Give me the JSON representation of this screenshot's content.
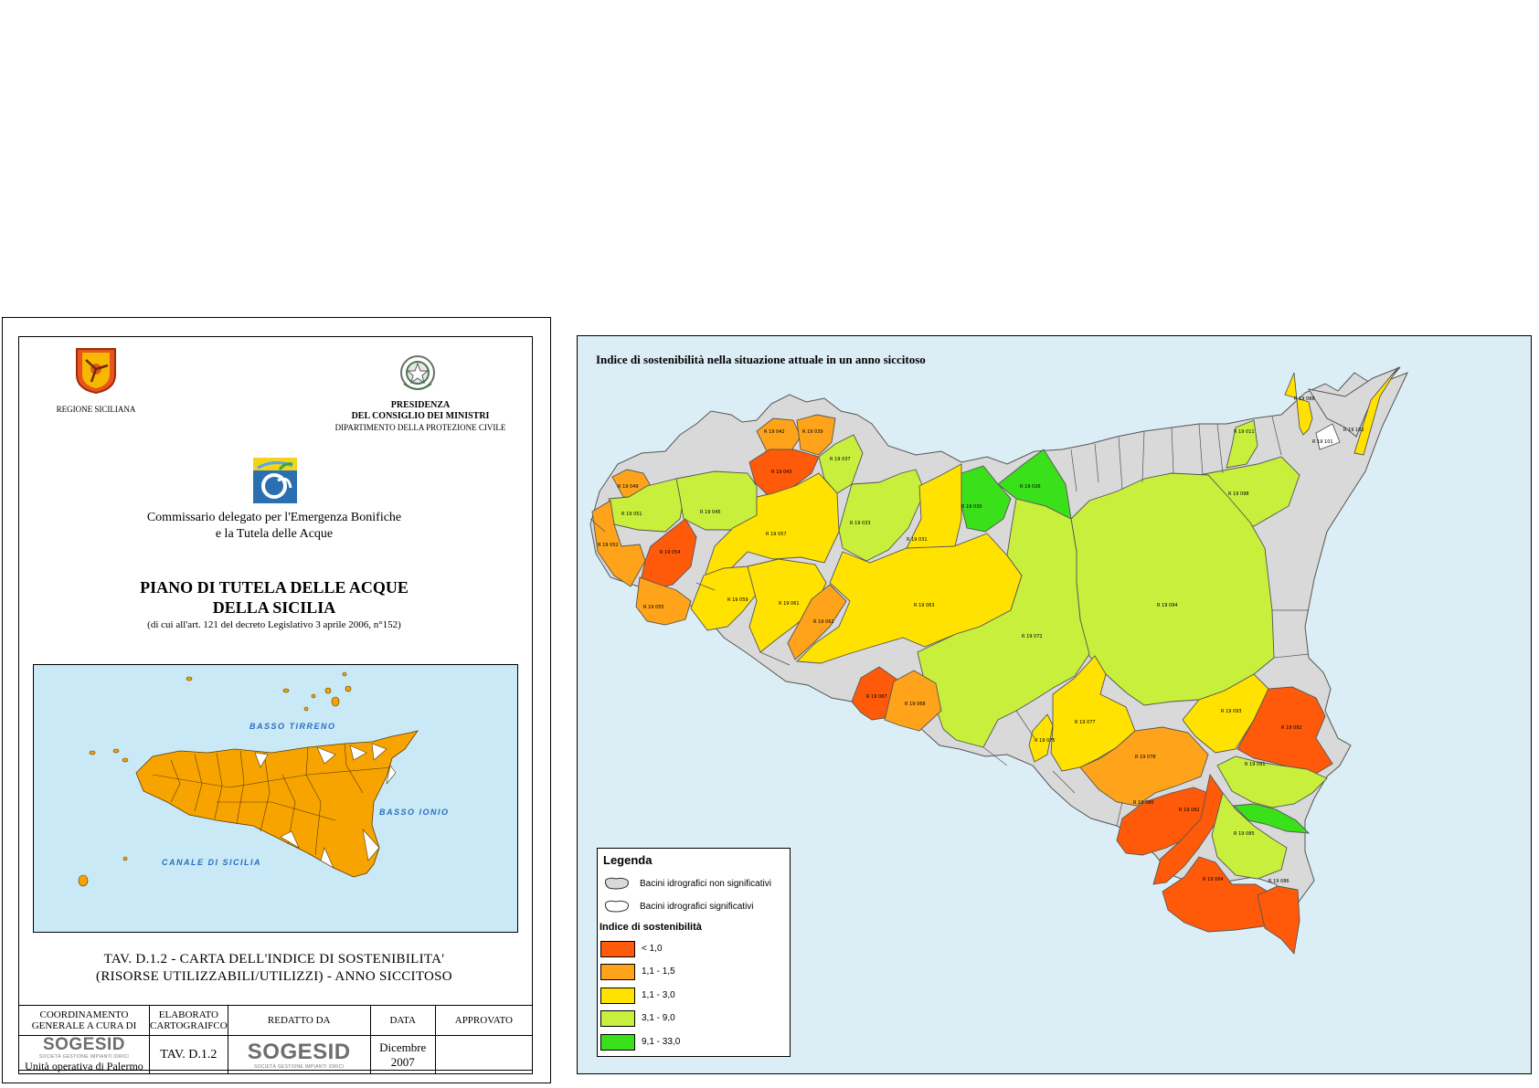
{
  "sheet": {
    "regione_label": "REGIONE SICILIANA",
    "presidenza": [
      "PRESIDENZA",
      "DEL CONSIGLIO DEI MINISTRI"
    ],
    "dipartimento": "DIPARTIMENTO DELLA PROTEZIONE CIVILE",
    "commissario": [
      "Commissario delegato per l'Emergenza Bonifiche",
      "e la Tutela delle Acque"
    ],
    "piano_title": [
      "PIANO DI TUTELA DELLE ACQUE",
      "DELLA SICILIA"
    ],
    "piano_sub": "(di cui all'art. 121 del decreto Legislativo 3 aprile 2006, n°152)",
    "inset_labels": {
      "tirreno": "BASSO TIRRENO",
      "ionio": "BASSO IONIO",
      "canale": "CANALE DI SICILIA"
    },
    "tav_title": [
      "TAV. D.1.2 - CARTA DELL'INDICE DI SOSTENIBILITA'",
      "(RISORSE UTILIZZABILI/UTILIZZI) - ANNO SICCITOSO"
    ],
    "table": {
      "h1": "COORDINAMENTO GENERALE A CURA DI",
      "h2": "ELABORATO CARTOGRAIFCO",
      "h3": "REDATTO DA",
      "h4": "DATA",
      "h5": "APPROVATO",
      "logo_text": "SOGESID",
      "logo_sub": "SOCIETÀ GESTIONE IMPIANTI IDRICI",
      "unita": "Unità operativa di Palermo",
      "code": "TAV. D.1.2",
      "date": [
        "Dicembre",
        "2007"
      ]
    }
  },
  "map": {
    "title": "Indice di sostenibilità nella situazione attuale in un anno siccitoso",
    "legend": {
      "title": "Legenda",
      "non_sig": "Bacini idrografici non significativi",
      "sig": "Bacini idrografici significativi",
      "index_title": "Indice di sostenibilità",
      "classes": [
        {
          "label": "< 1,0",
          "color": "#ff5a0a"
        },
        {
          "label": "1,1 - 1,5",
          "color": "#ffa31a"
        },
        {
          "label": "1,1 - 3,0",
          "color": "#ffe200"
        },
        {
          "label": "3,1 - 9,0",
          "color": "#c8ef3c"
        },
        {
          "label": "9,1 - 33,0",
          "color": "#3ae01a"
        }
      ]
    },
    "colors": {
      "sea": "#dbeef6",
      "non_sig": "#d9d9d9"
    },
    "basin_labels": [
      "R 19 088",
      "R 19 102",
      "R 19 101",
      "R 19 011",
      "R 19 098",
      "R 19 042",
      "R 19 039",
      "R 19 043",
      "R 19 037",
      "R 19 049",
      "R 19 051",
      "R 19 045",
      "R 19 054",
      "R 19 052",
      "R 19 057",
      "R 19 033",
      "R 19 031",
      "R 19 030",
      "R 19 026",
      "R 19 055",
      "R 19 059",
      "R 19 061",
      "R 19 062",
      "R 19 063",
      "R 19 094",
      "R 19 072",
      "R 19 067",
      "R 19 068",
      "R 19 075",
      "R 19 077",
      "R 19 093",
      "R 19 092",
      "R 19 078",
      "R 19 091",
      "R 19 080",
      "R 19 082",
      "R 19 085",
      "R 19 084",
      "R 19 086"
    ]
  }
}
